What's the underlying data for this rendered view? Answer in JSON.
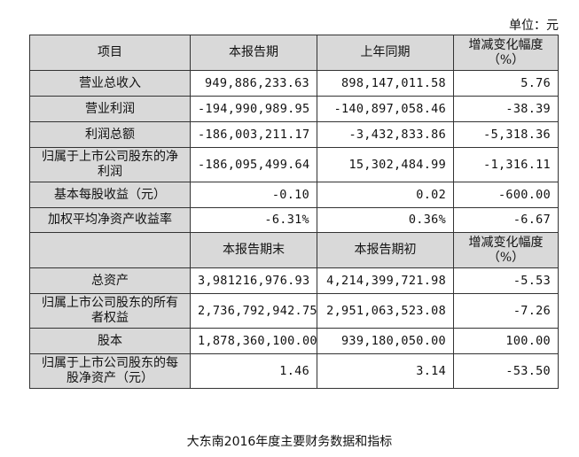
{
  "unit_label": "单位：元",
  "header1": {
    "item": "项目",
    "current": "本报告期",
    "prior": "上年同期",
    "change": "增减变化幅度（%）"
  },
  "rows1": [
    {
      "label": "营业总收入",
      "current": "949,886,233.63",
      "prior": "898,147,011.58",
      "change": "5.76"
    },
    {
      "label": "营业利润",
      "current": "-194,990,989.95",
      "prior": "-140,897,058.46",
      "change": "-38.39"
    },
    {
      "label": "利润总额",
      "current": "-186,003,211.17",
      "prior": "-3,432,833.86",
      "change": "-5,318.36"
    },
    {
      "label": "归属于上市公司股东的净利润",
      "current": "-186,095,499.64",
      "prior": "15,302,484.99",
      "change": "-1,316.11"
    },
    {
      "label": "基本每股收益（元）",
      "current": "-0.10",
      "prior": "0.02",
      "change": "-600.00"
    },
    {
      "label": "加权平均净资产收益率",
      "current": "-6.31%",
      "prior": "0.36%",
      "change": "-6.67"
    }
  ],
  "header2": {
    "current": "本报告期末",
    "prior": "本报告期初",
    "change": "增减变化幅度（%）"
  },
  "rows2": [
    {
      "label": "总资产",
      "current": "3,981216,976.93",
      "prior": "4,214,399,721.98",
      "change": "-5.53"
    },
    {
      "label": "归属上市公司股东的所有者权益",
      "current": "2,736,792,942.75",
      "prior": "2,951,063,523.08",
      "change": "-7.26"
    },
    {
      "label": "股本",
      "current": "1,878,360,100.00",
      "prior": "939,180,050.00",
      "change": "100.00"
    },
    {
      "label": "归属于上市公司股东的每股净资产（元）",
      "current": "1.46",
      "prior": "3.14",
      "change": "-53.50"
    }
  ],
  "caption": "大东南2016年度主要财务数据和指标"
}
